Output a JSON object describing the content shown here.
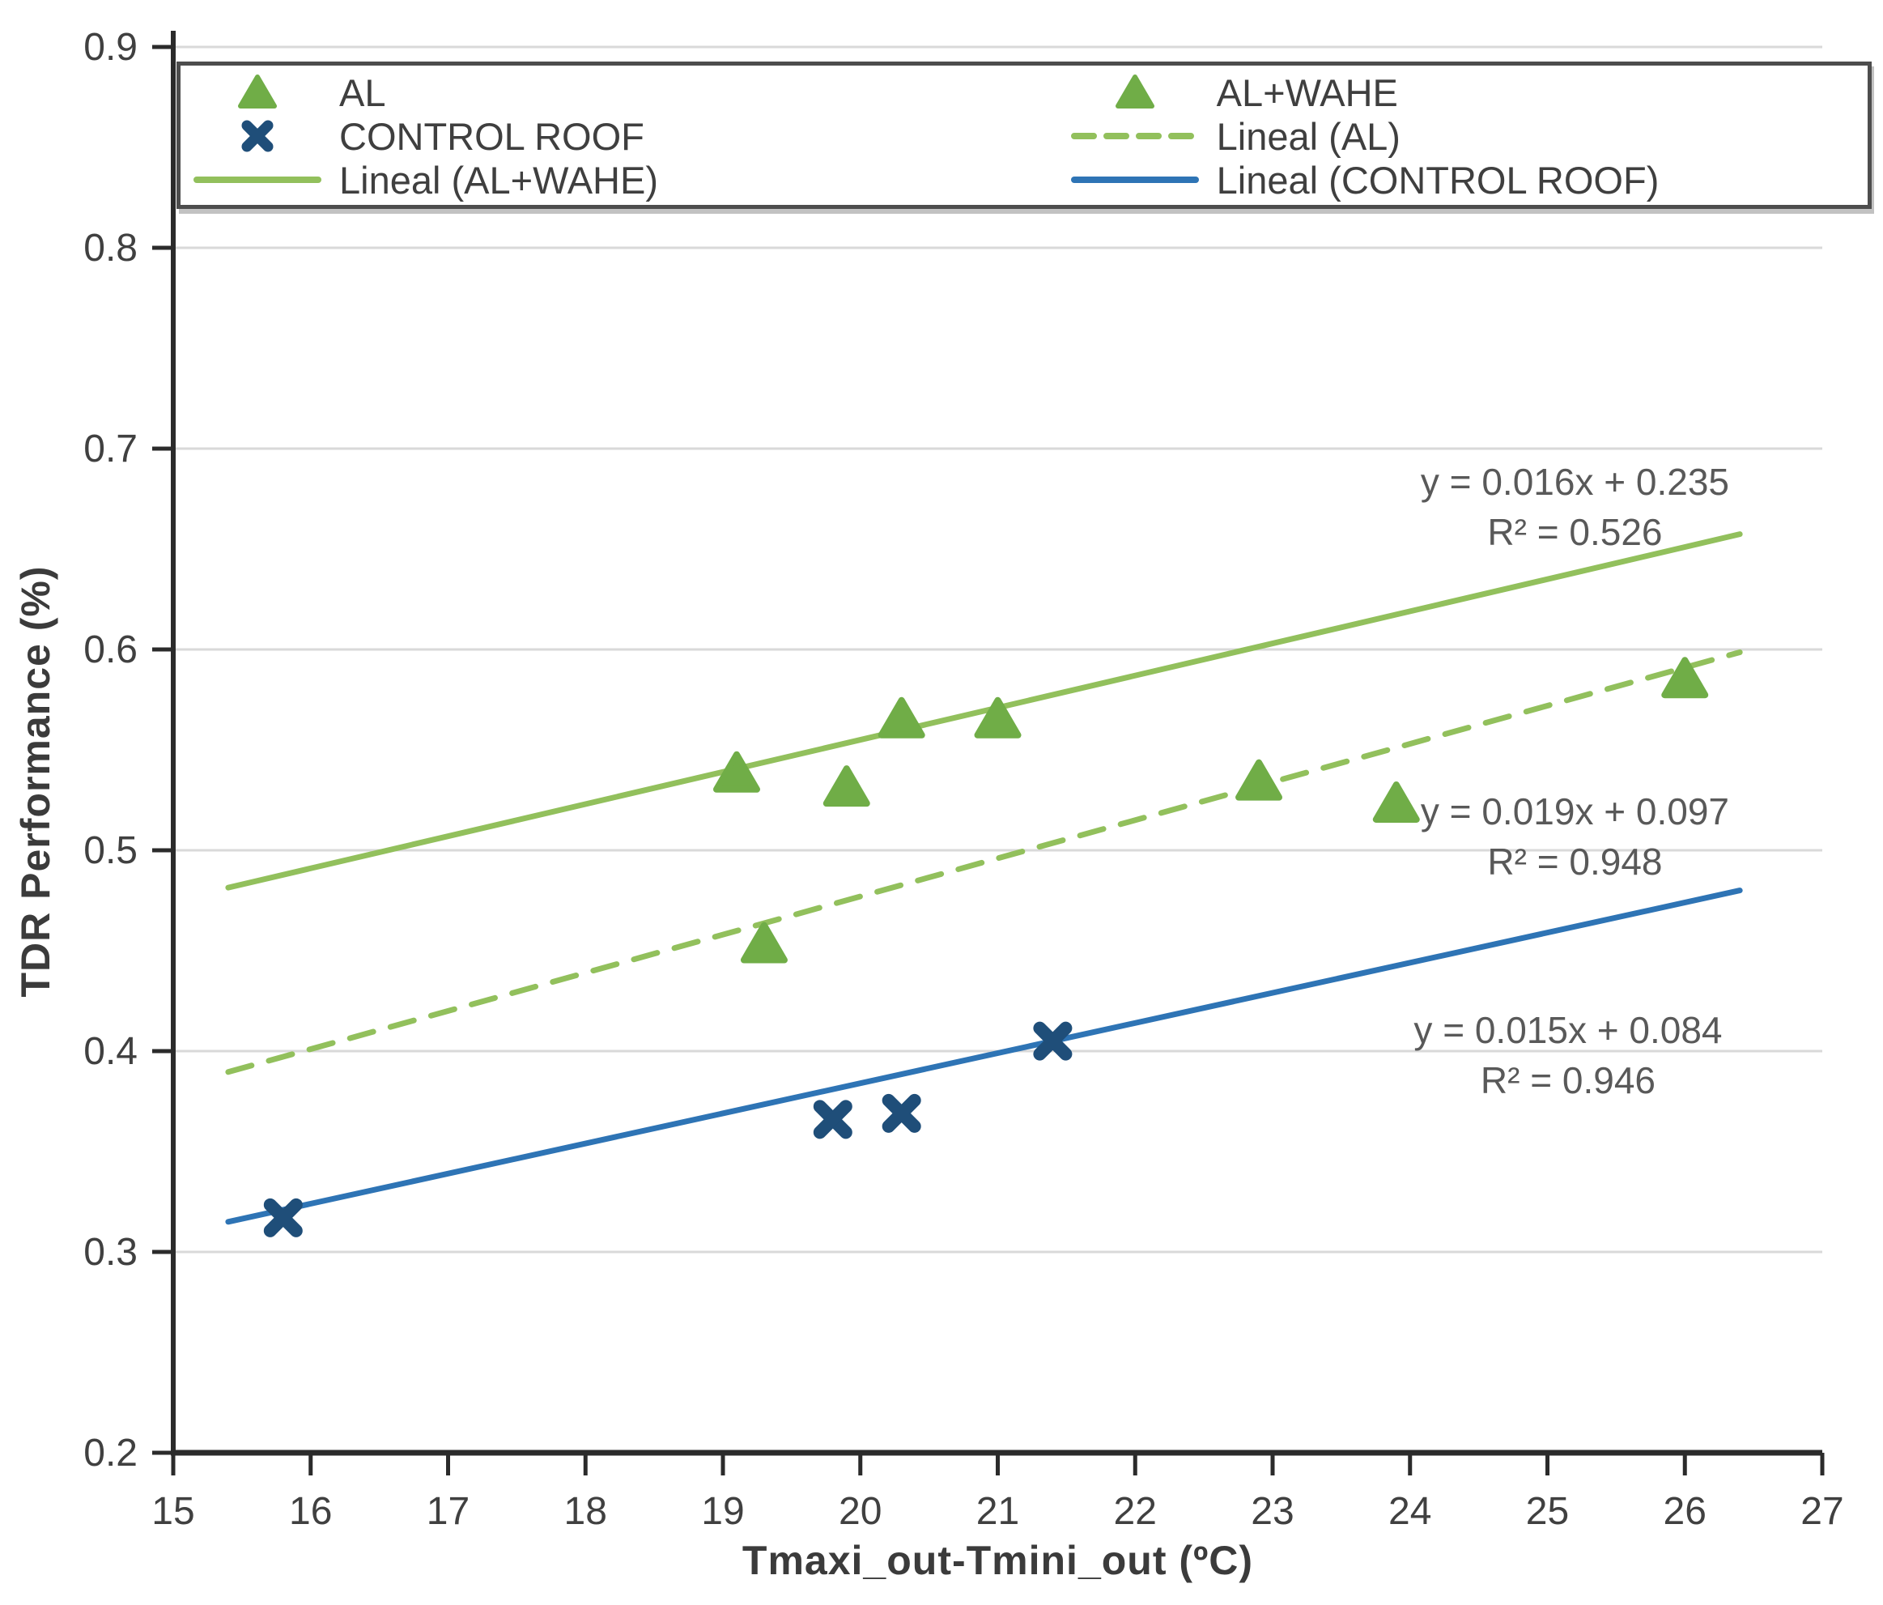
{
  "chart_data": {
    "type": "scatter",
    "title": "",
    "xlabel": "Tmaxi_out-Tmini_out (ºC)",
    "ylabel": "TDR Performance (%)",
    "xlim": [
      15,
      27
    ],
    "ylim": [
      0.2,
      0.9
    ],
    "xticks": [
      15,
      16,
      17,
      18,
      19,
      20,
      21,
      22,
      23,
      24,
      25,
      26,
      27
    ],
    "yticks": [
      0.2,
      0.3,
      0.4,
      0.5,
      0.6,
      0.7,
      0.8,
      0.9
    ],
    "grid": "horizontal",
    "colors": {
      "green_marker": "#70AD47",
      "green_line": "#92C05C",
      "blue_marker": "#1F4E79",
      "blue_line": "#2E74B5",
      "grid": "#D9D9D9",
      "axis": "#2b2b2b",
      "tick_label": "#404040",
      "annotation_text": "#595959"
    },
    "series": [
      {
        "name": "AL",
        "marker": "triangle",
        "color": "#70AD47",
        "points": [
          [
            19.3,
            0.453
          ],
          [
            22.9,
            0.534
          ],
          [
            23.9,
            0.523
          ],
          [
            26.0,
            0.585
          ]
        ],
        "trendline": {
          "label": "Lineal (AL)",
          "style": "dashed",
          "color": "#92C05C",
          "slope": 0.019,
          "intercept": 0.097,
          "x_start": 15.4,
          "x_end": 26.4,
          "equation": "y = 0.019x + 0.097",
          "r2": "R² = 0.948"
        }
      },
      {
        "name": "AL+WAHE",
        "marker": "triangle",
        "color": "#70AD47",
        "points": [
          [
            19.1,
            0.538
          ],
          [
            19.9,
            0.531
          ],
          [
            20.3,
            0.565
          ],
          [
            21.0,
            0.565
          ]
        ],
        "trendline": {
          "label": "Lineal (AL+WAHE)",
          "style": "solid",
          "color": "#92C05C",
          "slope": 0.016,
          "intercept": 0.235,
          "x_start": 15.4,
          "x_end": 26.4,
          "equation": "y = 0.016x + 0.235",
          "r2": "R² = 0.526"
        }
      },
      {
        "name": "CONTROL ROOF",
        "marker": "x-cross",
        "color": "#1F4E79",
        "points": [
          [
            15.8,
            0.317
          ],
          [
            19.8,
            0.366
          ],
          [
            20.3,
            0.369
          ],
          [
            21.4,
            0.405
          ]
        ],
        "trendline": {
          "label": "Lineal (CONTROL ROOF)",
          "style": "solid",
          "color": "#2E74B5",
          "slope": 0.015,
          "intercept": 0.084,
          "x_start": 15.4,
          "x_end": 26.4,
          "equation": "y = 0.015x + 0.084",
          "r2": "R² = 0.946"
        }
      }
    ],
    "annotations": [
      {
        "x": 25.2,
        "y": 0.683,
        "lines": [
          "y = 0.016x + 0.235",
          "R² = 0.526"
        ]
      },
      {
        "x": 25.2,
        "y": 0.519,
        "lines": [
          "y = 0.019x + 0.097",
          "R² = 0.948"
        ]
      },
      {
        "x": 25.15,
        "y": 0.41,
        "lines": [
          "y = 0.015x + 0.084",
          "R² = 0.946"
        ]
      }
    ],
    "legend": {
      "position": "top",
      "columns": [
        [
          {
            "label": "AL",
            "glyph": "triangle",
            "color": "#70AD47"
          },
          {
            "label": "CONTROL ROOF",
            "glyph": "x-cross",
            "color": "#1F4E79"
          },
          {
            "label": "Lineal (AL+WAHE)",
            "glyph": "line-solid",
            "color": "#92C05C"
          }
        ],
        [
          {
            "label": "AL+WAHE",
            "glyph": "triangle",
            "color": "#70AD47"
          },
          {
            "label": "Lineal (AL)",
            "glyph": "line-dashed",
            "color": "#92C05C"
          },
          {
            "label": "Lineal (CONTROL ROOF)",
            "glyph": "line-solid",
            "color": "#2E74B5"
          }
        ]
      ]
    }
  }
}
